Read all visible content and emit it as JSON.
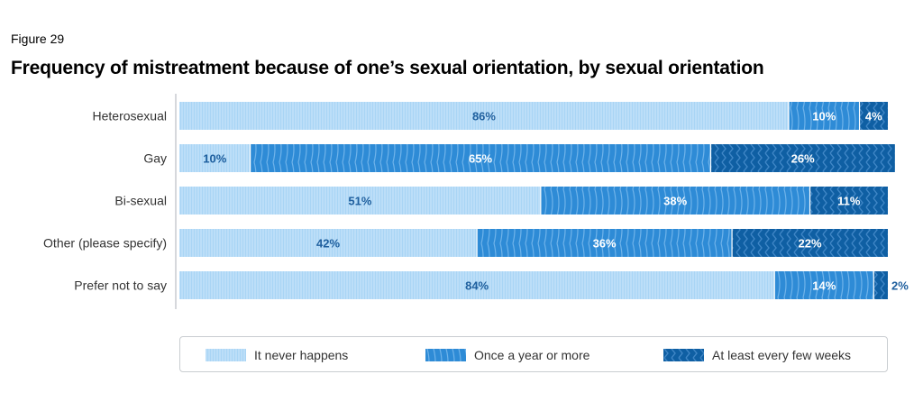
{
  "figure_label": "Figure 29",
  "chart_data": {
    "type": "bar",
    "orientation": "horizontal",
    "stacked": true,
    "title": "Frequency of mistreatment because of one’s sexual orientation, by sexual orientation",
    "xlabel": "",
    "ylabel": "",
    "xlim": [
      0,
      100
    ],
    "grid": false,
    "legend_position": "bottom",
    "categories": [
      "Heterosexual",
      "Gay",
      "Bi-sexual",
      "Other (please specify)",
      "Prefer not to say"
    ],
    "series": [
      {
        "name": "It never happens",
        "values": [
          86,
          10,
          51,
          42,
          84
        ],
        "color": "#a9d5f5",
        "pattern": "vertical-lines"
      },
      {
        "name": "Once a year or more",
        "values": [
          10,
          65,
          38,
          36,
          14
        ],
        "color": "#2e8bd6",
        "pattern": "arcs"
      },
      {
        "name": "At least every few weeks",
        "values": [
          4,
          26,
          11,
          22,
          2
        ],
        "color": "#0f5fa3",
        "pattern": "chevrons"
      }
    ],
    "data_labels": [
      [
        "86%",
        "10%",
        "4%"
      ],
      [
        "10%",
        "65%",
        "26%"
      ],
      [
        "51%",
        "38%",
        "11%"
      ],
      [
        "42%",
        "36%",
        "22%"
      ],
      [
        "84%",
        "14%",
        "2%"
      ]
    ]
  }
}
